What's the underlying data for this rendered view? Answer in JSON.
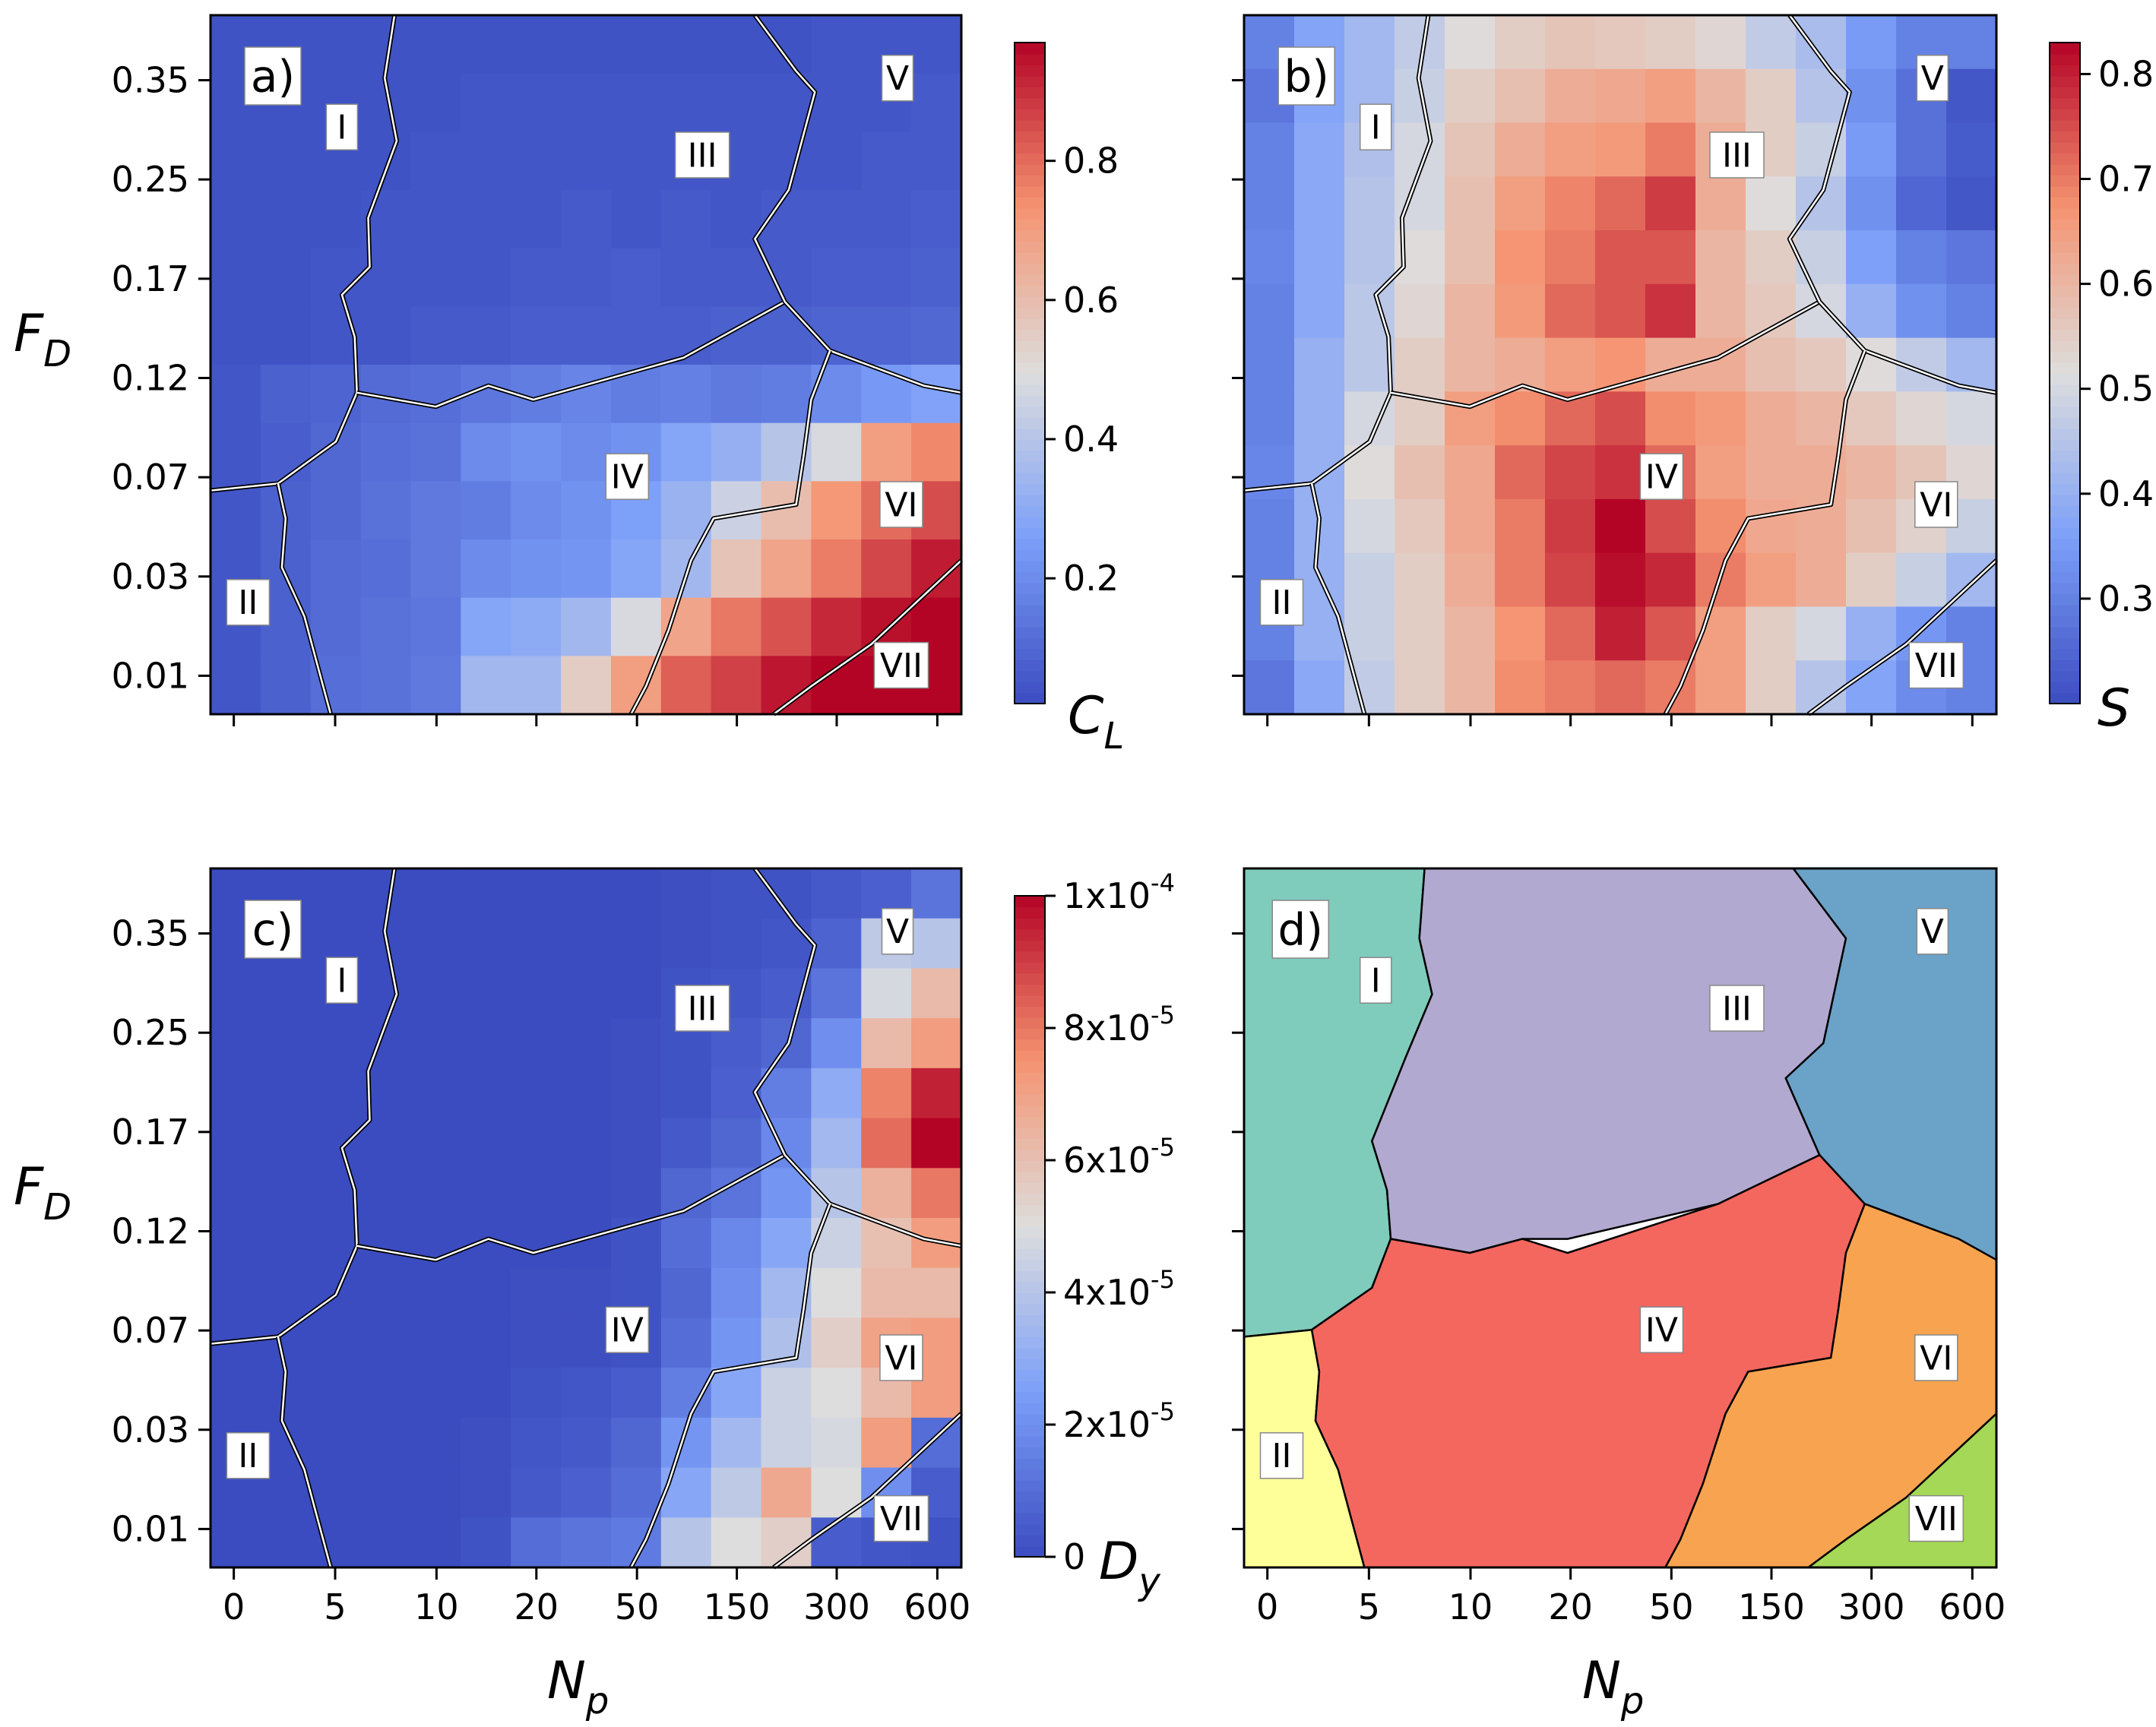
{
  "chart_data": [
    {
      "panel": "a)",
      "type": "heatmap",
      "x_ticks": [
        "0",
        "5",
        "10",
        "20",
        "50",
        "150",
        "300",
        "600"
      ],
      "y_ticks": [
        "0.35",
        "0.25",
        "0.17",
        "0.12",
        "0.07",
        "0.03",
        "0.01"
      ],
      "xlabel": "N_p",
      "ylabel": "F_D",
      "colorbar": {
        "label": "C_L",
        "min": 0.02,
        "max": 0.97,
        "ticks": [
          0.2,
          0.4,
          0.6,
          0.8
        ],
        "tick_labels": [
          "0.2",
          "0.4",
          "0.6",
          "0.8"
        ]
      },
      "regions": [
        "I",
        "II",
        "III",
        "IV",
        "V",
        "VI",
        "VII"
      ],
      "rows_top_to_bottom": [
        [
          0.04,
          0.04,
          0.04,
          0.04,
          0.04,
          0.04,
          0.04,
          0.04,
          0.04,
          0.04,
          0.04,
          0.04,
          0.05,
          0.05,
          0.05
        ],
        [
          0.04,
          0.04,
          0.04,
          0.04,
          0.04,
          0.05,
          0.05,
          0.05,
          0.05,
          0.05,
          0.05,
          0.05,
          0.05,
          0.05,
          0.06
        ],
        [
          0.04,
          0.04,
          0.04,
          0.04,
          0.05,
          0.05,
          0.05,
          0.05,
          0.05,
          0.05,
          0.05,
          0.05,
          0.05,
          0.06,
          0.06
        ],
        [
          0.04,
          0.04,
          0.04,
          0.05,
          0.05,
          0.05,
          0.05,
          0.06,
          0.05,
          0.06,
          0.05,
          0.06,
          0.06,
          0.06,
          0.07
        ],
        [
          0.04,
          0.04,
          0.05,
          0.05,
          0.05,
          0.05,
          0.06,
          0.06,
          0.07,
          0.06,
          0.06,
          0.06,
          0.07,
          0.07,
          0.08
        ],
        [
          0.04,
          0.04,
          0.05,
          0.05,
          0.06,
          0.06,
          0.07,
          0.07,
          0.07,
          0.07,
          0.08,
          0.08,
          0.09,
          0.09,
          0.1
        ],
        [
          0.05,
          0.08,
          0.09,
          0.11,
          0.12,
          0.14,
          0.16,
          0.18,
          0.16,
          0.17,
          0.15,
          0.16,
          0.2,
          0.24,
          0.27
        ],
        [
          0.05,
          0.07,
          0.1,
          0.12,
          0.13,
          0.2,
          0.22,
          0.2,
          0.22,
          0.28,
          0.32,
          0.4,
          0.48,
          0.7,
          0.75
        ],
        [
          0.05,
          0.08,
          0.1,
          0.13,
          0.15,
          0.16,
          0.2,
          0.22,
          0.26,
          0.33,
          0.45,
          0.6,
          0.72,
          0.8,
          0.85
        ],
        [
          0.05,
          0.08,
          0.11,
          0.12,
          0.15,
          0.2,
          0.22,
          0.23,
          0.28,
          0.35,
          0.58,
          0.68,
          0.77,
          0.86,
          0.93
        ],
        [
          0.05,
          0.08,
          0.11,
          0.13,
          0.14,
          0.28,
          0.3,
          0.35,
          0.48,
          0.68,
          0.78,
          0.84,
          0.91,
          0.95,
          0.97
        ],
        [
          0.05,
          0.08,
          0.12,
          0.13,
          0.15,
          0.35,
          0.35,
          0.55,
          0.7,
          0.82,
          0.87,
          0.94,
          0.97,
          0.97,
          0.97
        ]
      ]
    },
    {
      "panel": "b)",
      "type": "heatmap",
      "x_ticks": [
        "0",
        "5",
        "10",
        "20",
        "50",
        "150",
        "300",
        "600"
      ],
      "y_ticks": [
        "0.35",
        "0.25",
        "0.17",
        "0.12",
        "0.07",
        "0.03",
        "0.01"
      ],
      "xlabel": "N_p",
      "ylabel": "F_D",
      "colorbar": {
        "label": "S",
        "min": 0.2,
        "max": 0.83,
        "ticks": [
          0.3,
          0.4,
          0.5,
          0.6,
          0.7,
          0.8
        ],
        "tick_labels": [
          "0.3",
          "0.4",
          "0.5",
          "0.6",
          "0.7",
          "0.8"
        ]
      },
      "regions": [
        "I",
        "II",
        "III",
        "IV",
        "V",
        "VI",
        "VII"
      ],
      "rows_top_to_bottom": [
        [
          0.3,
          0.37,
          0.42,
          0.47,
          0.52,
          0.55,
          0.57,
          0.56,
          0.55,
          0.53,
          0.47,
          0.43,
          0.35,
          0.3,
          0.3
        ],
        [
          0.28,
          0.37,
          0.42,
          0.48,
          0.55,
          0.58,
          0.62,
          0.63,
          0.65,
          0.6,
          0.55,
          0.45,
          0.33,
          0.27,
          0.22
        ],
        [
          0.3,
          0.38,
          0.44,
          0.5,
          0.57,
          0.62,
          0.65,
          0.66,
          0.7,
          0.62,
          0.55,
          0.48,
          0.35,
          0.27,
          0.23
        ],
        [
          0.3,
          0.38,
          0.45,
          0.5,
          0.58,
          0.65,
          0.69,
          0.72,
          0.77,
          0.62,
          0.52,
          0.45,
          0.33,
          0.25,
          0.22
        ],
        [
          0.31,
          0.38,
          0.45,
          0.52,
          0.58,
          0.67,
          0.7,
          0.74,
          0.74,
          0.6,
          0.55,
          0.48,
          0.36,
          0.3,
          0.28
        ],
        [
          0.3,
          0.38,
          0.46,
          0.53,
          0.6,
          0.66,
          0.72,
          0.74,
          0.78,
          0.6,
          0.56,
          0.5,
          0.4,
          0.33,
          0.3
        ],
        [
          0.3,
          0.4,
          0.46,
          0.55,
          0.6,
          0.62,
          0.65,
          0.67,
          0.62,
          0.62,
          0.58,
          0.56,
          0.52,
          0.47,
          0.42
        ],
        [
          0.3,
          0.4,
          0.5,
          0.55,
          0.65,
          0.68,
          0.72,
          0.75,
          0.68,
          0.66,
          0.62,
          0.6,
          0.56,
          0.53,
          0.5
        ],
        [
          0.31,
          0.4,
          0.52,
          0.58,
          0.63,
          0.72,
          0.76,
          0.78,
          0.72,
          0.65,
          0.62,
          0.62,
          0.6,
          0.57,
          0.53
        ],
        [
          0.3,
          0.4,
          0.5,
          0.56,
          0.63,
          0.7,
          0.77,
          0.83,
          0.75,
          0.68,
          0.63,
          0.62,
          0.58,
          0.54,
          0.48
        ],
        [
          0.3,
          0.4,
          0.48,
          0.55,
          0.62,
          0.7,
          0.76,
          0.82,
          0.79,
          0.7,
          0.65,
          0.62,
          0.55,
          0.48,
          0.42
        ],
        [
          0.3,
          0.4,
          0.48,
          0.55,
          0.6,
          0.67,
          0.72,
          0.8,
          0.74,
          0.65,
          0.55,
          0.5,
          0.4,
          0.34,
          0.3
        ],
        [
          0.28,
          0.38,
          0.47,
          0.55,
          0.6,
          0.68,
          0.7,
          0.72,
          0.7,
          0.65,
          0.55,
          0.45,
          0.37,
          0.32,
          0.3
        ]
      ]
    },
    {
      "panel": "c)",
      "type": "heatmap",
      "x_ticks": [
        "0",
        "5",
        "10",
        "20",
        "50",
        "150",
        "300",
        "600"
      ],
      "y_ticks": [
        "0.35",
        "0.25",
        "0.17",
        "0.12",
        "0.07",
        "0.03",
        "0.01"
      ],
      "xlabel": "N_p",
      "ylabel": "F_D",
      "colorbar": {
        "label": "D_y",
        "min": 0,
        "max": 0.0001,
        "ticks": [
          0,
          2e-05,
          4e-05,
          6e-05,
          8e-05,
          0.0001
        ],
        "tick_labels": [
          "0",
          "2x10^-5",
          "4x10^-5",
          "6x10^-5",
          "8x10^-5",
          "1x10^-4"
        ]
      },
      "regions": [
        "I",
        "II",
        "III",
        "IV",
        "V",
        "VI",
        "VII"
      ],
      "rows_top_to_bottom": [
        [
          0.0,
          0.0,
          0.0,
          0.0,
          0.0,
          0.0,
          0.0,
          0.0,
          0.0,
          0.01,
          0.02,
          0.02,
          0.04,
          0.06,
          0.12
        ],
        [
          0.0,
          0.0,
          0.0,
          0.0,
          0.0,
          0.0,
          0.0,
          0.0,
          0.0,
          0.01,
          0.02,
          0.03,
          0.07,
          0.42,
          0.4
        ],
        [
          0.0,
          0.0,
          0.0,
          0.0,
          0.0,
          0.0,
          0.0,
          0.0,
          0.0,
          0.02,
          0.03,
          0.05,
          0.12,
          0.48,
          0.62
        ],
        [
          0.0,
          0.0,
          0.0,
          0.0,
          0.0,
          0.0,
          0.0,
          0.0,
          0.01,
          0.02,
          0.05,
          0.08,
          0.2,
          0.62,
          0.72
        ],
        [
          0.0,
          0.0,
          0.0,
          0.0,
          0.0,
          0.0,
          0.0,
          0.0,
          0.01,
          0.02,
          0.06,
          0.15,
          0.3,
          0.78,
          0.95
        ],
        [
          0.0,
          0.0,
          0.0,
          0.0,
          0.0,
          0.0,
          0.0,
          0.0,
          0.01,
          0.04,
          0.08,
          0.18,
          0.35,
          0.82,
          1.0
        ],
        [
          0.0,
          0.0,
          0.0,
          0.0,
          0.0,
          0.0,
          0.0,
          0.0,
          0.01,
          0.08,
          0.12,
          0.22,
          0.4,
          0.65,
          0.8
        ],
        [
          0.0,
          0.0,
          0.0,
          0.0,
          0.0,
          0.0,
          0.0,
          0.0,
          0.02,
          0.1,
          0.18,
          0.28,
          0.45,
          0.6,
          0.72
        ],
        [
          0.0,
          0.0,
          0.0,
          0.0,
          0.0,
          0.0,
          0.01,
          0.01,
          0.02,
          0.08,
          0.2,
          0.35,
          0.5,
          0.62,
          0.62
        ],
        [
          0.0,
          0.0,
          0.0,
          0.0,
          0.0,
          0.0,
          0.01,
          0.01,
          0.02,
          0.1,
          0.22,
          0.38,
          0.55,
          0.7,
          0.72
        ],
        [
          0.0,
          0.0,
          0.0,
          0.0,
          0.0,
          0.0,
          0.02,
          0.03,
          0.05,
          0.15,
          0.28,
          0.45,
          0.5,
          0.62,
          0.72
        ],
        [
          0.0,
          0.0,
          0.0,
          0.0,
          0.0,
          0.01,
          0.03,
          0.04,
          0.08,
          0.22,
          0.35,
          0.45,
          0.48,
          0.72,
          0.1
        ],
        [
          0.0,
          0.0,
          0.0,
          0.0,
          0.0,
          0.01,
          0.04,
          0.06,
          0.1,
          0.28,
          0.42,
          0.68,
          0.5,
          0.2,
          0.05
        ],
        [
          0.0,
          0.0,
          0.0,
          0.0,
          0.0,
          0.02,
          0.1,
          0.12,
          0.14,
          0.4,
          0.5,
          0.55,
          0.05,
          0.03,
          0.02
        ]
      ]
    },
    {
      "panel": "d)",
      "type": "region-map",
      "x_ticks": [
        "0",
        "5",
        "10",
        "20",
        "50",
        "150",
        "300",
        "600"
      ],
      "xlabel": "N_p",
      "regions": [
        {
          "label": "I",
          "color": "#7fcbbc"
        },
        {
          "label": "II",
          "color": "#ffff99"
        },
        {
          "label": "III",
          "color": "#b1a9cf"
        },
        {
          "label": "IV",
          "color": "#f4675f"
        },
        {
          "label": "V",
          "color": "#6ba2c8"
        },
        {
          "label": "VI",
          "color": "#f7a350"
        },
        {
          "label": "VII",
          "color": "#a5d856"
        }
      ]
    }
  ],
  "labels": {
    "np": "N",
    "np_sub": "p",
    "fd": "F",
    "fd_sub": "D",
    "cl": "C",
    "cl_sub": "L",
    "s": "S",
    "dy": "D",
    "dy_sub": "y"
  }
}
